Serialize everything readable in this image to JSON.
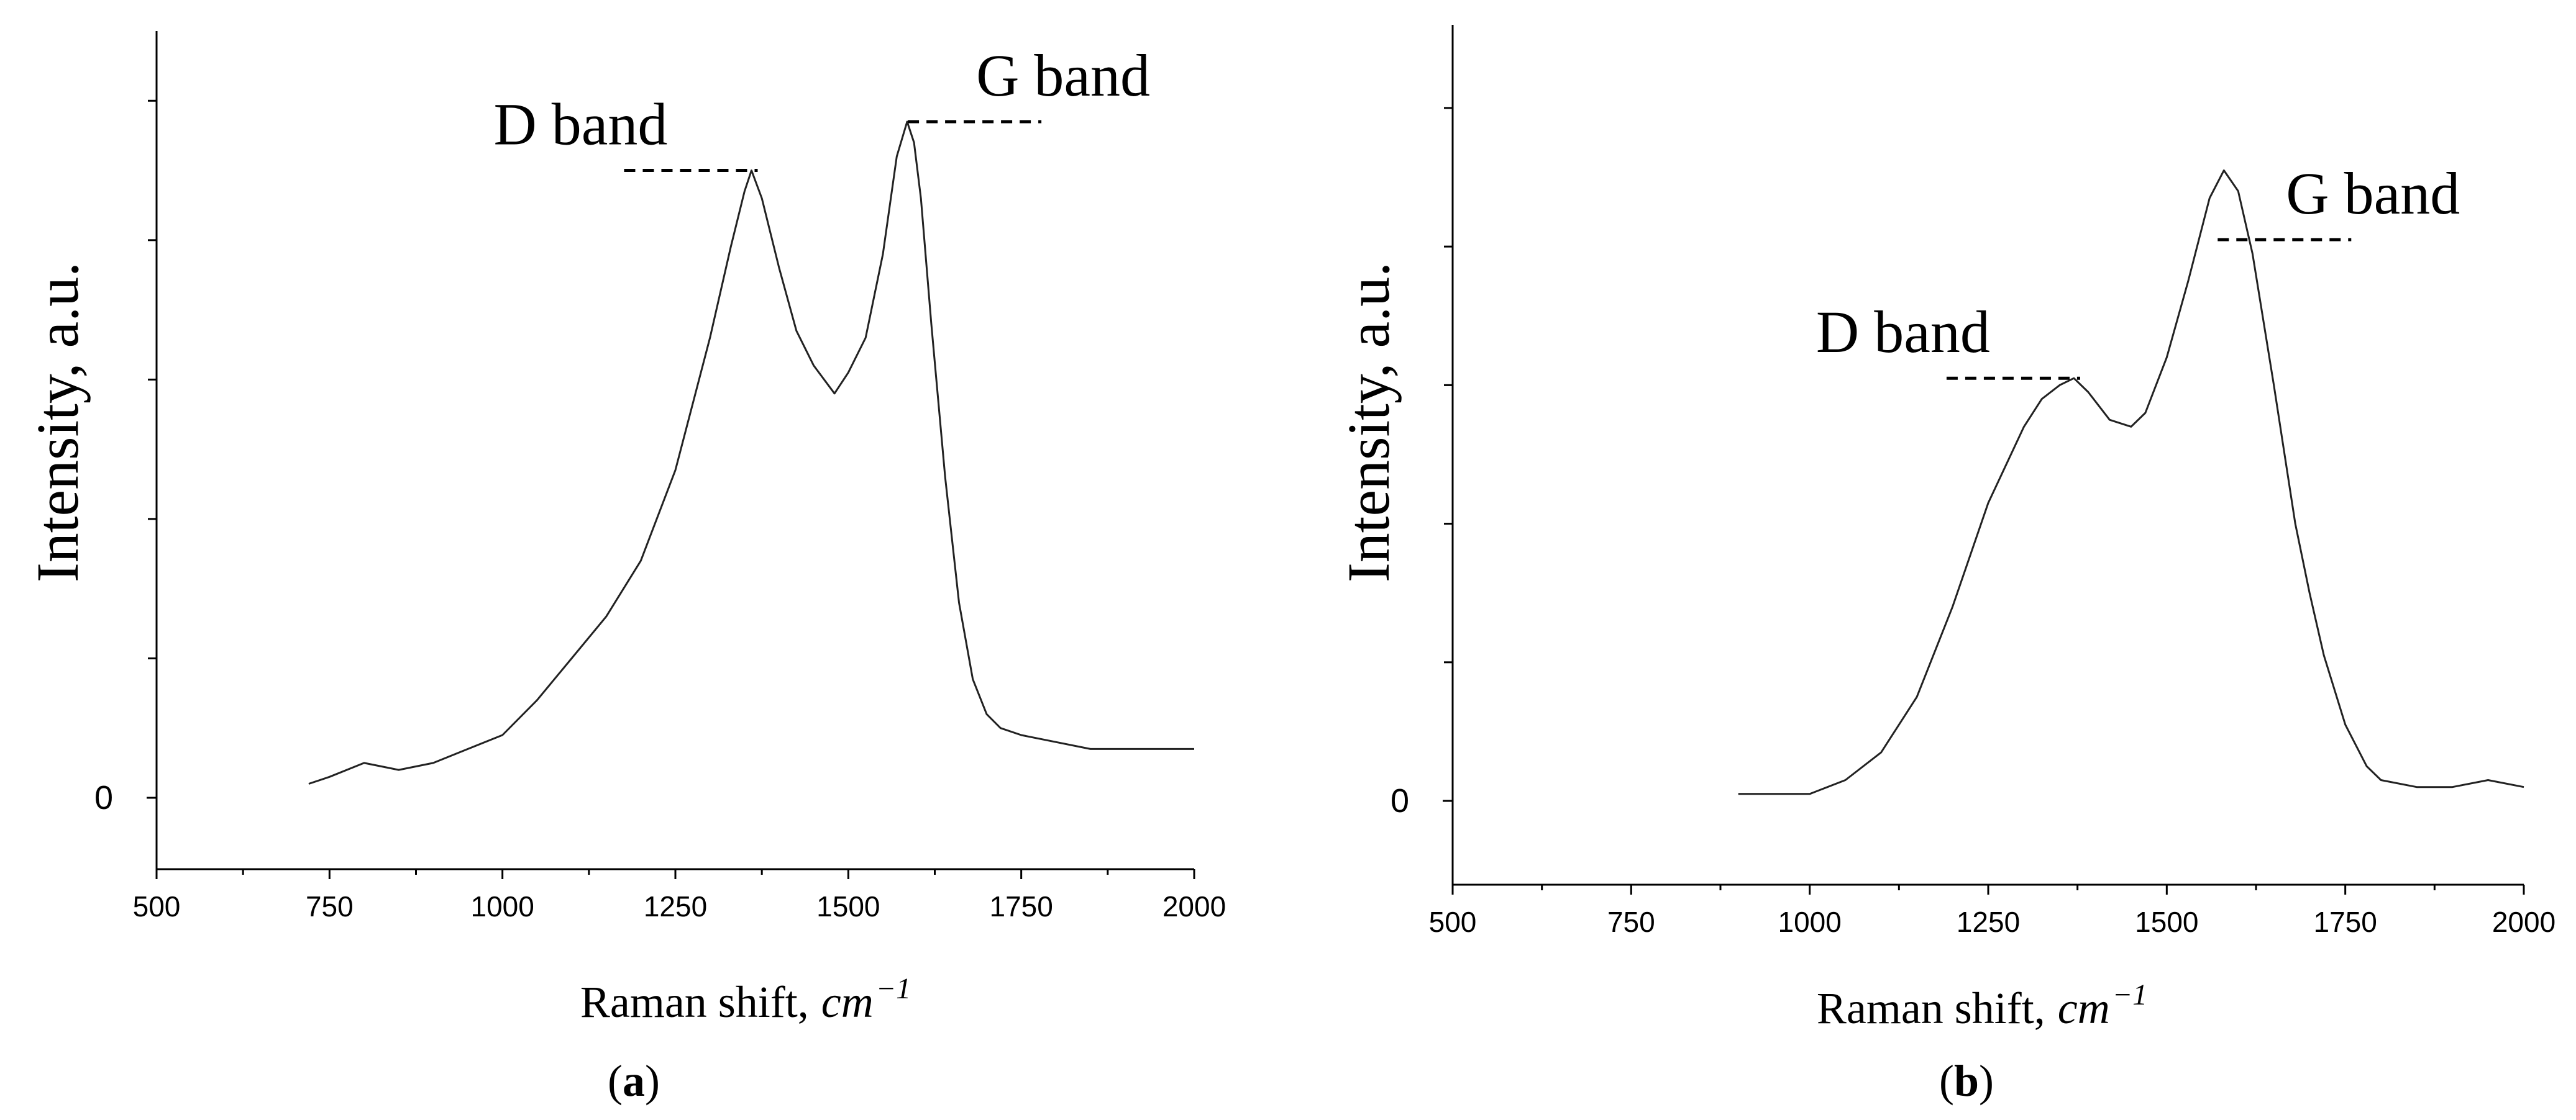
{
  "chart_data": [
    {
      "panel": "a",
      "type": "line",
      "xlabel": "Raman shift,",
      "xlabel_unit": "cm",
      "xlabel_unit_sup": "−1",
      "ylabel": "Intensity, a.u.",
      "y_zero_label": "0",
      "xlim": [
        500,
        2000
      ],
      "xticks": [
        "500",
        "750",
        "1000",
        "1250",
        "1500",
        "1750",
        "2000"
      ],
      "ylim": [
        -0.1,
        1.1
      ],
      "y_minor_ticks": [
        0.2,
        0.4,
        0.6,
        0.8,
        1.0
      ],
      "grid": false,
      "annotations": [
        {
          "text": "D band",
          "x": 1360,
          "y": 0.9
        },
        {
          "text": "G band",
          "x": 1595,
          "y": 0.97
        }
      ],
      "series": [
        {
          "x": [
            720,
            750,
            800,
            850,
            900,
            950,
            1000,
            1050,
            1100,
            1150,
            1200,
            1250,
            1300,
            1330,
            1350,
            1360,
            1375,
            1400,
            1425,
            1450,
            1480,
            1500,
            1525,
            1550,
            1570,
            1585,
            1595,
            1605,
            1620,
            1640,
            1660,
            1680,
            1700,
            1720,
            1750,
            1800,
            1850,
            1900,
            1950,
            2000
          ],
          "y": [
            0.02,
            0.03,
            0.05,
            0.04,
            0.05,
            0.07,
            0.09,
            0.14,
            0.2,
            0.26,
            0.34,
            0.47,
            0.66,
            0.79,
            0.87,
            0.9,
            0.86,
            0.76,
            0.67,
            0.62,
            0.58,
            0.61,
            0.66,
            0.78,
            0.92,
            0.97,
            0.94,
            0.86,
            0.68,
            0.46,
            0.28,
            0.17,
            0.12,
            0.1,
            0.09,
            0.08,
            0.07,
            0.07,
            0.07,
            0.07
          ]
        }
      ],
      "panel_label": "a"
    },
    {
      "panel": "b",
      "type": "line",
      "xlabel": "Raman shift,",
      "xlabel_unit": "cm",
      "xlabel_unit_sup": "−1",
      "ylabel": "Intensity, a.u.",
      "y_zero_label": "0",
      "xlim": [
        500,
        2000
      ],
      "xticks": [
        "500",
        "750",
        "1000",
        "1250",
        "1500",
        "1750",
        "2000"
      ],
      "ylim": [
        -0.12,
        1.12
      ],
      "y_minor_ticks": [
        0.2,
        0.4,
        0.6,
        0.8,
        1.0
      ],
      "grid": false,
      "annotations": [
        {
          "text": "D band",
          "x": 1370,
          "y": 0.61
        },
        {
          "text": "G band",
          "x": 1580,
          "y": 0.81
        }
      ],
      "series": [
        {
          "x": [
            900,
            950,
            1000,
            1050,
            1100,
            1150,
            1200,
            1250,
            1300,
            1325,
            1350,
            1370,
            1390,
            1420,
            1450,
            1470,
            1500,
            1530,
            1560,
            1580,
            1600,
            1620,
            1650,
            1680,
            1700,
            1720,
            1750,
            1780,
            1800,
            1850,
            1900,
            1950,
            2000
          ],
          "y": [
            0.01,
            0.01,
            0.01,
            0.03,
            0.07,
            0.15,
            0.28,
            0.43,
            0.54,
            0.58,
            0.6,
            0.61,
            0.59,
            0.55,
            0.54,
            0.56,
            0.64,
            0.75,
            0.87,
            0.91,
            0.88,
            0.79,
            0.6,
            0.4,
            0.3,
            0.21,
            0.11,
            0.05,
            0.03,
            0.02,
            0.02,
            0.03,
            0.02
          ]
        }
      ],
      "panel_label": "b"
    }
  ],
  "colors": {
    "line": "#222222",
    "axis": "#000000",
    "background": "#ffffff"
  }
}
